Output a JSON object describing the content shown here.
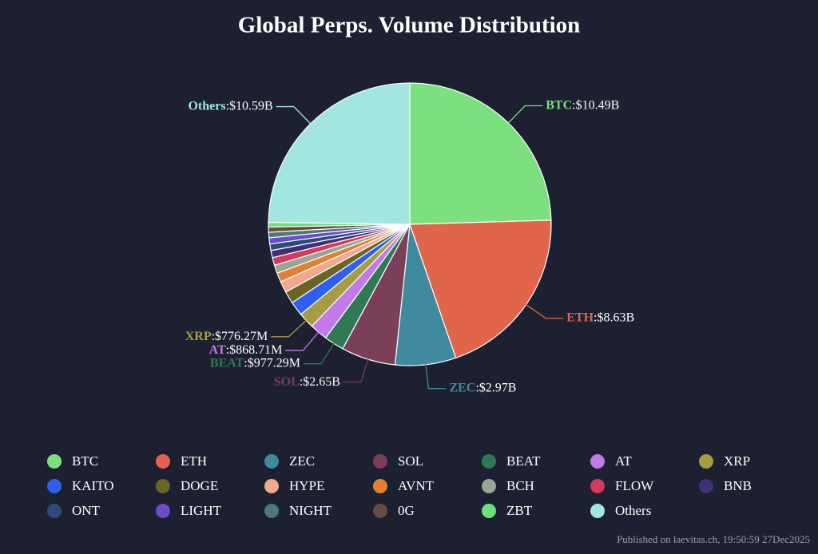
{
  "chart_data": {
    "type": "pie",
    "title": "Global Perps. Volume Distribution",
    "categories": [
      "BTC",
      "ETH",
      "ZEC",
      "SOL",
      "BEAT",
      "AT",
      "XRP",
      "KAITO",
      "DOGE",
      "HYPE",
      "AVNT",
      "BCH",
      "FLOW",
      "BNB",
      "ONT",
      "LIGHT",
      "NIGHT",
      "0G",
      "ZBT",
      "Others"
    ],
    "values": [
      10490000000,
      8630000000,
      2970000000,
      2650000000,
      977290000,
      868710000,
      776270000,
      700000000,
      600000000,
      550000000,
      450000000,
      400000000,
      380000000,
      350000000,
      320000000,
      300000000,
      270000000,
      250000000,
      230000000,
      10590000000
    ],
    "value_labels": [
      ":$10.49B",
      ":$8.63B",
      ":$2.97B",
      ":$2.65B",
      ":$977.29M",
      ":$868.71M",
      ":$776.27M",
      null,
      null,
      null,
      null,
      null,
      null,
      null,
      null,
      null,
      null,
      null,
      null,
      ":$10.59B"
    ],
    "colors": [
      "#7de07f",
      "#e0654b",
      "#3f8a9e",
      "#7b3f5a",
      "#2e7a55",
      "#c07be8",
      "#a89b45",
      "#2d5ff0",
      "#6b6523",
      "#f0a88f",
      "#e08030",
      "#9aa595",
      "#d6385e",
      "#3f3175",
      "#2e4a7a",
      "#6a4ccc",
      "#4a7a75",
      "#6b4b3e",
      "#6ee07a",
      "#a3e5df"
    ],
    "legend": "bottom",
    "footer": "Published on laevitas.ch, 19:50:59 27Dec2025"
  }
}
